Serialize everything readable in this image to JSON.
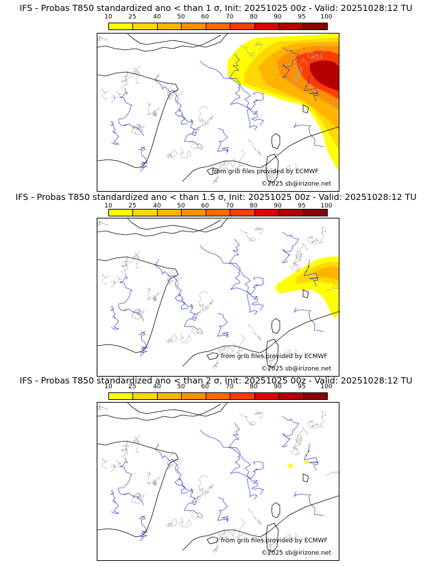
{
  "colorbar": {
    "labels": [
      "10",
      "25",
      "40",
      "50",
      "60",
      "70",
      "80",
      "90",
      "95",
      "100"
    ],
    "colors": [
      "#ffff00",
      "#ffd800",
      "#ffb400",
      "#ff9000",
      "#ff6a00",
      "#ff3c00",
      "#e00000",
      "#b40000",
      "#8a0000",
      "#500000"
    ]
  },
  "panels": [
    {
      "title": "IFS - Probas T850  standardized ano < than 1 σ, Init: 20251025 00z - Valid: 20251028:12 TU",
      "credit_source": "from grib files provided by ECMWF",
      "credit_site": "©2025 sb@irizone.net"
    },
    {
      "title": "IFS - Probas T850  standardized ano < than 1.5 σ, Init: 20251025 00z - Valid: 20251028:12 TU",
      "credit_source": "from grib files provided by ECMWF",
      "credit_site": "©2025 sb@irizone.net"
    },
    {
      "title": "IFS - Probas T850  standardized ano < than 2 σ, Init: 20251025 00z - Valid: 20251028:12 TU",
      "credit_source": "from grib files provided by ECMWF",
      "credit_site": "©2025 sb@irizone.net"
    }
  ]
}
